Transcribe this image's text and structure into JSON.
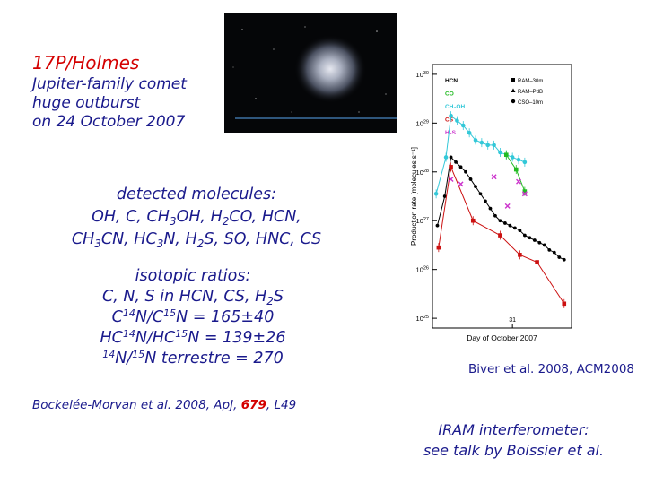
{
  "title": "17P/Holmes",
  "description": [
    "Jupiter-family comet",
    "huge outburst",
    "on 24 October 2007"
  ],
  "molecules": {
    "heading": "detected molecules:",
    "line2": {
      "a": "OH, C, CH",
      "b": "3",
      "c": "OH, H",
      "d": "2",
      "e": "CO, HCN,"
    },
    "line3": {
      "a": "CH",
      "b": "3",
      "c": "CN, HC",
      "d": "3",
      "e": "N, H",
      "f": "2",
      "g": "S, SO, HNC, CS"
    }
  },
  "isotopes": {
    "heading": "isotopic ratios:",
    "line2": {
      "a": "C, N, S in HCN, CS, H",
      "b": "2",
      "c": "S"
    },
    "line3": {
      "a": "C",
      "b": "14",
      "c": "N/C",
      "d": "15",
      "e": "N = 165±40"
    },
    "line4": {
      "a": "HC",
      "b": "14",
      "c": "N/HC",
      "d": "15",
      "e": "N = 139±26"
    },
    "line5": {
      "a": "14",
      "b": "N/",
      "c": "15",
      "d": "N terrestre = 270"
    }
  },
  "citation_chart": "Biver et al. 2008, ACM2008",
  "citation_paper": {
    "a": "Bockelée-Morvan et al. 2008, ApJ,",
    "vol": "679",
    "b": ", L49"
  },
  "iram": [
    "IRAM interferometer:",
    "see talk by Boissier et al."
  ],
  "colors": {
    "title": "#d40000",
    "text": "#1a1a8c",
    "hcn": "#000000",
    "co": "#22bb22",
    "ch3oh": "#33c8d8",
    "cs": "#cc1111",
    "h2s": "#cc33cc"
  },
  "chart_data": {
    "type": "line",
    "xlabel": "Day of October 2007",
    "ylabel": "Production rate [molecules s⁻¹]",
    "x_ticks": [
      {
        "x": 31,
        "label": "31"
      }
    ],
    "y_ticks": [
      {
        "exp": 30,
        "label": "10",
        "sup": "30"
      },
      {
        "exp": 29,
        "label": "10",
        "sup": "29"
      },
      {
        "exp": 28,
        "label": "10",
        "sup": "28"
      },
      {
        "exp": 27,
        "label": "10",
        "sup": "27"
      },
      {
        "exp": 26,
        "label": "10",
        "sup": "26"
      },
      {
        "exp": 25,
        "label": "10",
        "sup": "25"
      }
    ],
    "xlim": [
      24.5,
      35.8
    ],
    "ylim": [
      24.8,
      30.2
    ],
    "yscale": "log",
    "legend_left": [
      {
        "name": "HCN",
        "color": "#000000"
      },
      {
        "name": "CO",
        "color": "#22bb22"
      },
      {
        "name": "CH₃OH",
        "color": "#33c8d8"
      },
      {
        "name": "CS",
        "color": "#cc1111"
      },
      {
        "name": "H₂S",
        "color": "#cc33cc"
      }
    ],
    "legend_right": [
      {
        "name": "RAM–30m",
        "symbol": "square"
      },
      {
        "name": "RAM–PdB",
        "symbol": "triangle"
      },
      {
        "name": "CSO–10m",
        "symbol": "circle"
      }
    ],
    "series": [
      {
        "name": "CH₃OH",
        "color": "#33c8d8",
        "marker": "circle",
        "points": [
          [
            24.8,
            27.55
          ],
          [
            25.6,
            28.3
          ],
          [
            26.0,
            29.15
          ],
          [
            26.5,
            29.05
          ],
          [
            27.0,
            28.95
          ],
          [
            27.5,
            28.8
          ],
          [
            28.0,
            28.65
          ],
          [
            28.5,
            28.6
          ],
          [
            29.0,
            28.55
          ],
          [
            29.5,
            28.55
          ],
          [
            30.0,
            28.4
          ],
          [
            30.5,
            28.35
          ],
          [
            31.0,
            28.3
          ],
          [
            31.5,
            28.25
          ],
          [
            32.0,
            28.2
          ]
        ]
      },
      {
        "name": "HCN",
        "color": "#000000",
        "marker": "dot",
        "points": [
          [
            24.9,
            26.9
          ],
          [
            25.5,
            27.5
          ],
          [
            26.0,
            28.3
          ],
          [
            26.4,
            28.2
          ],
          [
            26.8,
            28.1
          ],
          [
            27.2,
            28.0
          ],
          [
            27.6,
            27.85
          ],
          [
            28.0,
            27.7
          ],
          [
            28.4,
            27.55
          ],
          [
            28.8,
            27.4
          ],
          [
            29.2,
            27.25
          ],
          [
            29.6,
            27.1
          ],
          [
            30.0,
            27.0
          ],
          [
            30.4,
            26.95
          ],
          [
            30.8,
            26.9
          ],
          [
            31.2,
            26.85
          ],
          [
            31.6,
            26.8
          ],
          [
            32.0,
            26.7
          ],
          [
            32.4,
            26.65
          ],
          [
            32.8,
            26.6
          ],
          [
            33.2,
            26.55
          ],
          [
            33.6,
            26.5
          ],
          [
            34.0,
            26.4
          ],
          [
            34.4,
            26.35
          ],
          [
            34.8,
            26.25
          ],
          [
            35.2,
            26.2
          ]
        ]
      },
      {
        "name": "CS",
        "color": "#cc1111",
        "marker": "square",
        "points": [
          [
            25.0,
            26.45
          ],
          [
            26.0,
            28.1
          ],
          [
            27.8,
            27.0
          ],
          [
            30.0,
            26.7
          ],
          [
            31.6,
            26.3
          ],
          [
            33.0,
            26.15
          ],
          [
            35.2,
            25.3
          ]
        ]
      },
      {
        "name": "CO",
        "color": "#22bb22",
        "marker": "square",
        "points": [
          [
            30.5,
            28.35
          ],
          [
            31.3,
            28.05
          ],
          [
            32.0,
            27.6
          ]
        ]
      },
      {
        "name": "H₂S",
        "color": "#cc33cc",
        "marker": "x",
        "points": [
          [
            26.0,
            27.85
          ],
          [
            26.8,
            27.75
          ],
          [
            29.5,
            27.9
          ],
          [
            30.6,
            27.3
          ],
          [
            31.5,
            27.8
          ],
          [
            32.0,
            27.55
          ]
        ]
      }
    ]
  }
}
